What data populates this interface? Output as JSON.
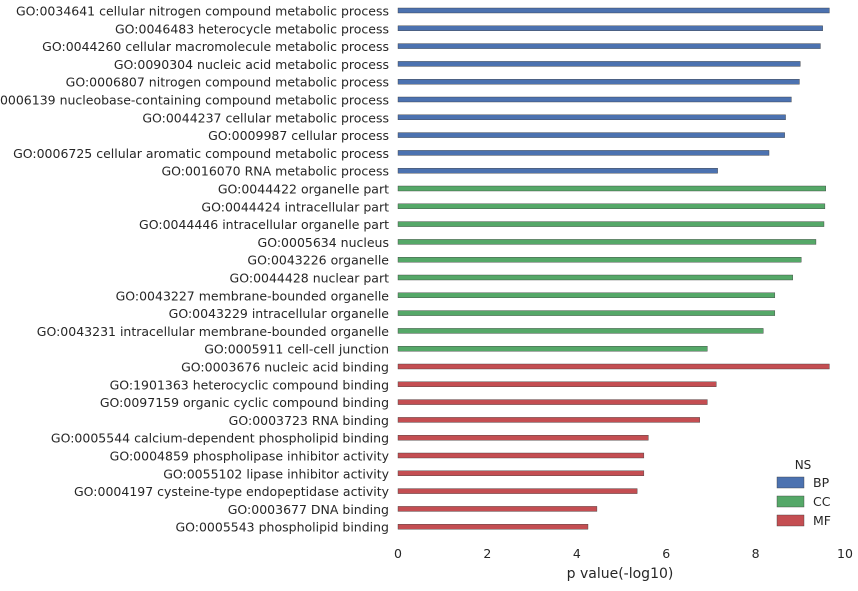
{
  "chart_data": {
    "type": "bar",
    "orientation": "horizontal",
    "xlabel": "p value(-log10)",
    "ylabel": "",
    "xlim": [
      0,
      10
    ],
    "xticks": [
      0,
      2,
      4,
      6,
      8,
      10
    ],
    "grid": false,
    "legend": {
      "title": "NS",
      "placement": "bottom-right"
    },
    "series": [
      {
        "name": "BP",
        "color": "#4c72b0"
      },
      {
        "name": "CC",
        "color": "#55a868"
      },
      {
        "name": "MF",
        "color": "#c44e52"
      }
    ],
    "categories": [
      "GO:0034641 cellular nitrogen compound metabolic process",
      "GO:0046483 heterocycle metabolic process",
      "GO:0044260 cellular macromolecule metabolic process",
      "GO:0090304 nucleic acid metabolic process",
      "GO:0006807 nitrogen compound metabolic process",
      "GO:0006139 nucleobase-containing compound metabolic process",
      "GO:0044237 cellular metabolic process",
      "GO:0009987 cellular process",
      "GO:0006725 cellular aromatic compound metabolic process",
      "GO:0016070 RNA metabolic process",
      "GO:0044422 organelle part",
      "GO:0044424 intracellular part",
      "GO:0044446 intracellular organelle part",
      "GO:0005634 nucleus",
      "GO:0043226 organelle",
      "GO:0044428 nuclear part",
      "GO:0043227 membrane-bounded organelle",
      "GO:0043229 intracellular organelle",
      "GO:0043231 intracellular membrane-bounded organelle",
      "GO:0005911 cell-cell junction",
      "GO:0003676 nucleic acid binding",
      "GO:1901363 heterocyclic compound binding",
      "GO:0097159 organic cyclic compound binding",
      "GO:0003723 RNA binding",
      "GO:0005544 calcium-dependent phospholipid binding",
      "GO:0004859 phospholipase inhibitor activity",
      "GO:0055102 lipase inhibitor activity",
      "GO:0004197 cysteine-type endopeptidase activity",
      "GO:0003677 DNA binding",
      "GO:0005543 phospholipid binding"
    ],
    "groups": [
      "BP",
      "BP",
      "BP",
      "BP",
      "BP",
      "BP",
      "BP",
      "BP",
      "BP",
      "BP",
      "CC",
      "CC",
      "CC",
      "CC",
      "CC",
      "CC",
      "CC",
      "CC",
      "CC",
      "CC",
      "MF",
      "MF",
      "MF",
      "MF",
      "MF",
      "MF",
      "MF",
      "MF",
      "MF",
      "MF"
    ],
    "values": [
      9.65,
      9.5,
      9.45,
      9.0,
      8.98,
      8.8,
      8.67,
      8.65,
      8.3,
      7.15,
      9.57,
      9.55,
      9.53,
      9.35,
      9.02,
      8.83,
      8.43,
      8.43,
      8.17,
      6.92,
      9.65,
      7.12,
      6.92,
      6.75,
      5.6,
      5.5,
      5.5,
      5.35,
      4.45,
      4.25
    ]
  }
}
